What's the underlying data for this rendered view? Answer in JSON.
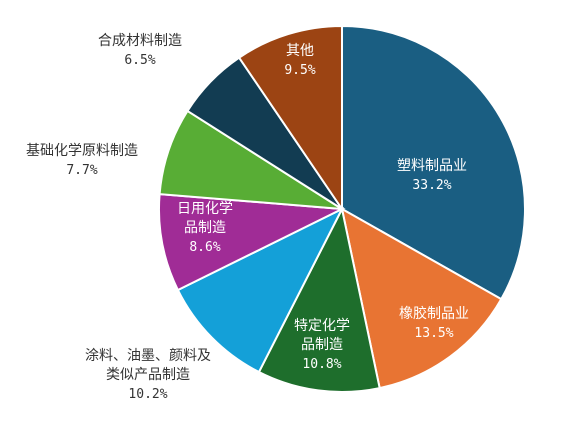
{
  "chart_data": {
    "type": "pie",
    "title": "",
    "slices": [
      {
        "name": "塑料制品业",
        "value": 33.2,
        "label": "33.2%",
        "name_lines": [
          "塑料制品业"
        ],
        "color": "#1a5e82",
        "label_color": "#ffffff"
      },
      {
        "name": "橡胶制品业",
        "value": 13.5,
        "label": "13.5%",
        "name_lines": [
          "橡胶制品业"
        ],
        "color": "#e87433",
        "label_color": "#ffffff"
      },
      {
        "name": "特定化学品制造",
        "value": 10.8,
        "label": "10.8%",
        "name_lines": [
          "特定化学",
          "品制造"
        ],
        "color": "#1e6e2c",
        "label_color": "#ffffff"
      },
      {
        "name": "涂料、油墨、颜料及类似产品制造",
        "value": 10.2,
        "label": "10.2%",
        "name_lines": [
          "涂料、油墨、颜料及",
          "类似产品制造"
        ],
        "color": "#14a0d8",
        "label_color": "#333333"
      },
      {
        "name": "日用化学品制造",
        "value": 8.6,
        "label": "8.6%",
        "name_lines": [
          "日用化学",
          "品制造"
        ],
        "color": "#a02c96",
        "label_color": "#ffffff"
      },
      {
        "name": "基础化学原料制造",
        "value": 7.7,
        "label": "7.7%",
        "name_lines": [
          "基础化学原料制造"
        ],
        "color": "#58ad35",
        "label_color": "#333333"
      },
      {
        "name": "合成材料制造",
        "value": 6.5,
        "label": "6.5%",
        "name_lines": [
          "合成材料制造"
        ],
        "color": "#123c52",
        "label_color": "#333333"
      },
      {
        "name": "其他",
        "value": 9.5,
        "label": "9.5%",
        "name_lines": [
          "其他"
        ],
        "color": "#9c4413",
        "label_color": "#ffffff"
      }
    ]
  }
}
